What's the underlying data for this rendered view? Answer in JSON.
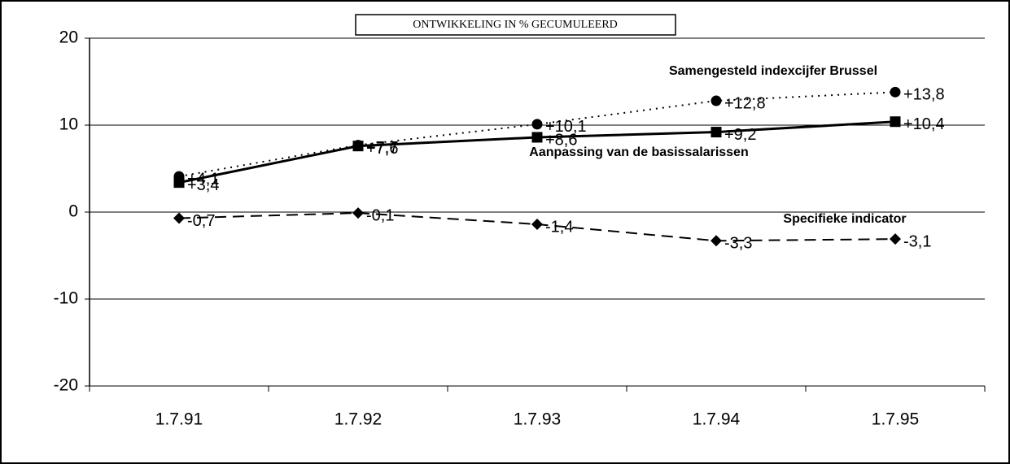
{
  "chart_data": {
    "type": "line",
    "title": "ONTWIKKELING IN % GECUMULEERD",
    "categories": [
      "1.7.91",
      "1.7.92",
      "1.7.93",
      "1.7.94",
      "1.7.95"
    ],
    "ylim": [
      -20,
      20
    ],
    "yticks": [
      -20,
      -10,
      0,
      10,
      20
    ],
    "grid": true,
    "series": [
      {
        "name": "Samengesteld indexcijfer Brussel",
        "color": "#000000",
        "style": "dotted",
        "marker": "circle",
        "values": [
          4.1,
          7.7,
          10.1,
          12.8,
          13.8
        ],
        "value_labels": [
          "+4,1",
          "+7,7",
          "+10,1",
          "+12,8",
          "+13,8"
        ]
      },
      {
        "name": "Aanpassing van de basissalarissen",
        "color": "#000000",
        "style": "solid",
        "marker": "square",
        "values": [
          3.4,
          7.6,
          8.6,
          9.2,
          10.4
        ],
        "value_labels": [
          "+3,4",
          "+7,6",
          "+8,6",
          "+9,2",
          "+10,4"
        ]
      },
      {
        "name": "Specifieke indicator",
        "color": "#000000",
        "style": "dashed",
        "marker": "diamond",
        "values": [
          -0.7,
          -0.1,
          -1.4,
          -3.3,
          -3.1
        ],
        "value_labels": [
          "-0,7",
          "-0,1",
          "-1,4",
          "-3,3",
          "-3,1"
        ]
      }
    ]
  }
}
